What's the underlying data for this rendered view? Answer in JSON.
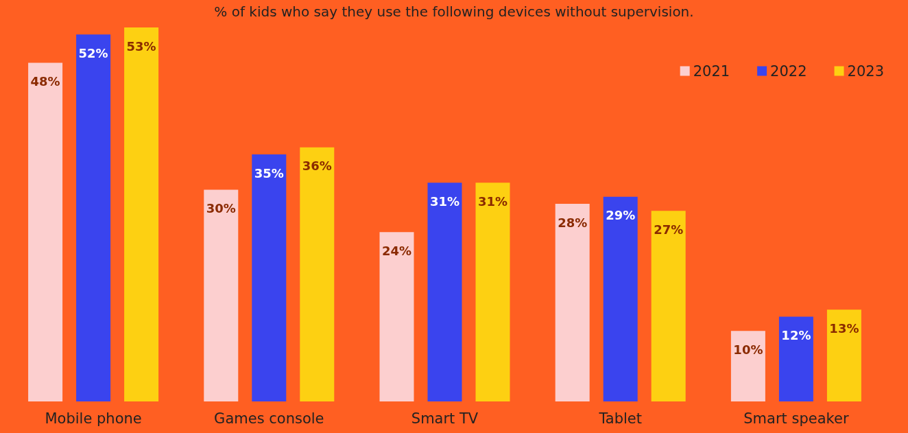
{
  "chart_data": {
    "type": "bar",
    "title": "% of kids who say they use the following devices without supervision.",
    "categories": [
      "Mobile phone",
      "Games console",
      "Smart TV",
      "Tablet",
      "Smart speaker"
    ],
    "series": [
      {
        "name": "2021",
        "color": "#fccfcf",
        "values": [
          48,
          30,
          24,
          28,
          10
        ],
        "value_labels": [
          "48%",
          "30%",
          "24%",
          "28%",
          "10%"
        ]
      },
      {
        "name": "2022",
        "color": "#3a44ee",
        "values": [
          52,
          35,
          31,
          29,
          12
        ],
        "value_labels": [
          "52%",
          "35%",
          "31%",
          "29%",
          "12%"
        ]
      },
      {
        "name": "2023",
        "color": "#fdd012",
        "values": [
          53,
          36,
          31,
          27,
          13
        ],
        "value_labels": [
          "53%",
          "36%",
          "31%",
          "27%",
          "13%"
        ]
      }
    ],
    "legend": "top right"
  }
}
